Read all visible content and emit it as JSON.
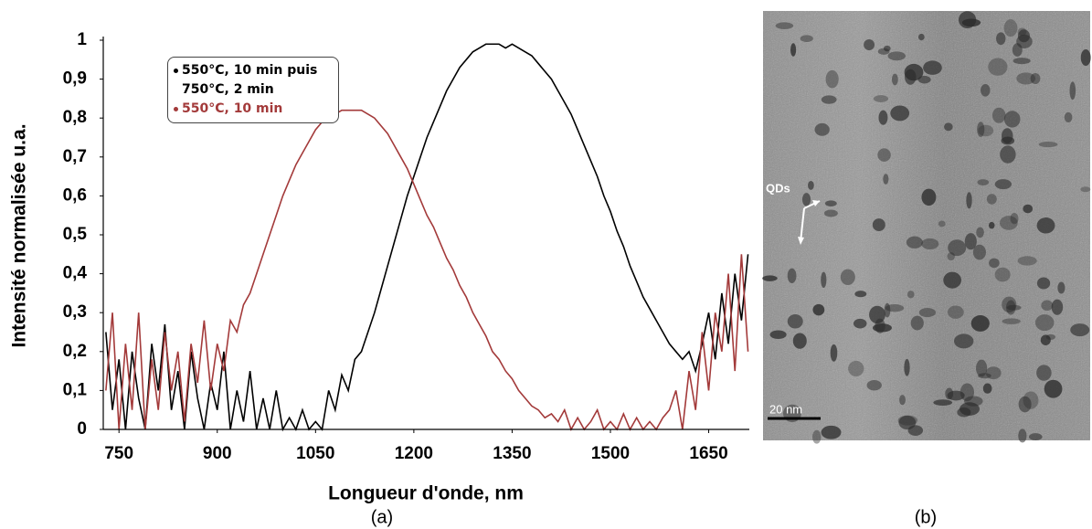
{
  "chart_data": {
    "type": "line",
    "panel_label": "(a)",
    "x_label": "Longueur d'onde, nm",
    "y_label": "Intensité normalisée u.a.",
    "xlim": [
      726,
      1712
    ],
    "ylim": [
      0,
      1
    ],
    "xticks": [
      750,
      900,
      1050,
      1200,
      1350,
      1500,
      1650
    ],
    "yticks": [
      0,
      {
        "value": 0.1,
        "label": "0,1"
      },
      {
        "value": 0.2,
        "label": "0,2"
      },
      {
        "value": 0.3,
        "label": "0,3"
      },
      {
        "value": 0.4,
        "label": "0,4"
      },
      {
        "value": 0.5,
        "label": "0,5"
      },
      {
        "value": 0.6,
        "label": "0,6"
      },
      {
        "value": 0.7,
        "label": "0,7"
      },
      {
        "value": 0.8,
        "label": "0,8"
      },
      {
        "value": 0.9,
        "label": "0,9"
      },
      1
    ],
    "x": [
      730,
      740,
      750,
      760,
      770,
      780,
      790,
      800,
      810,
      820,
      830,
      840,
      850,
      860,
      870,
      880,
      890,
      900,
      910,
      920,
      930,
      940,
      950,
      960,
      970,
      980,
      990,
      1000,
      1010,
      1020,
      1030,
      1040,
      1050,
      1060,
      1070,
      1080,
      1090,
      1100,
      1110,
      1120,
      1130,
      1140,
      1150,
      1160,
      1170,
      1180,
      1190,
      1200,
      1210,
      1220,
      1230,
      1240,
      1250,
      1260,
      1270,
      1280,
      1290,
      1300,
      1310,
      1320,
      1330,
      1340,
      1350,
      1360,
      1370,
      1380,
      1390,
      1400,
      1410,
      1420,
      1430,
      1440,
      1450,
      1460,
      1470,
      1480,
      1490,
      1500,
      1510,
      1520,
      1530,
      1540,
      1550,
      1560,
      1570,
      1580,
      1590,
      1600,
      1610,
      1620,
      1630,
      1640,
      1650,
      1660,
      1670,
      1680,
      1690,
      1700,
      1710
    ],
    "series": [
      {
        "name": "550°C, 10 min puis 750°C,  2 min",
        "color": "#000000",
        "values": [
          0.25,
          0.05,
          0.18,
          0,
          0.2,
          0.08,
          0,
          0.22,
          0.1,
          0.27,
          0.05,
          0.15,
          0,
          0.2,
          0.08,
          0,
          0.12,
          0.05,
          0.2,
          0,
          0.1,
          0.02,
          0.15,
          0,
          0.08,
          0,
          0.1,
          0,
          0.03,
          0,
          0.05,
          0,
          0.02,
          0,
          0.1,
          0.05,
          0.14,
          0.1,
          0.18,
          0.2,
          0.25,
          0.3,
          0.36,
          0.42,
          0.48,
          0.54,
          0.6,
          0.65,
          0.7,
          0.75,
          0.79,
          0.83,
          0.87,
          0.9,
          0.93,
          0.95,
          0.97,
          0.98,
          0.99,
          0.99,
          0.99,
          0.98,
          0.99,
          0.98,
          0.97,
          0.96,
          0.94,
          0.92,
          0.9,
          0.87,
          0.84,
          0.81,
          0.77,
          0.73,
          0.69,
          0.65,
          0.6,
          0.56,
          0.51,
          0.47,
          0.42,
          0.38,
          0.34,
          0.31,
          0.28,
          0.25,
          0.22,
          0.2,
          0.18,
          0.2,
          0.15,
          0.22,
          0.3,
          0.18,
          0.35,
          0.22,
          0.4,
          0.28,
          0.45
        ]
      },
      {
        "name": "550°C, 10 min",
        "color": "#a33a3a",
        "values": [
          0.1,
          0.3,
          0,
          0.22,
          0.05,
          0.3,
          0,
          0.18,
          0.05,
          0.25,
          0.1,
          0.2,
          0.02,
          0.22,
          0.12,
          0.28,
          0.1,
          0.22,
          0.15,
          0.28,
          0.25,
          0.32,
          0.35,
          0.4,
          0.45,
          0.5,
          0.55,
          0.6,
          0.64,
          0.68,
          0.71,
          0.74,
          0.77,
          0.79,
          0.8,
          0.81,
          0.82,
          0.82,
          0.82,
          0.82,
          0.81,
          0.8,
          0.78,
          0.76,
          0.73,
          0.7,
          0.67,
          0.63,
          0.59,
          0.55,
          0.52,
          0.48,
          0.44,
          0.41,
          0.37,
          0.34,
          0.3,
          0.27,
          0.24,
          0.2,
          0.18,
          0.15,
          0.13,
          0.1,
          0.08,
          0.06,
          0.05,
          0.03,
          0.04,
          0.02,
          0.05,
          0,
          0.03,
          0,
          0.02,
          0.05,
          0,
          0.02,
          0,
          0.04,
          0,
          0.03,
          0,
          0.02,
          0,
          0.03,
          0.05,
          0.1,
          0,
          0.15,
          0.05,
          0.25,
          0.1,
          0.3,
          0.2,
          0.4,
          0.15,
          0.45,
          0.2
        ]
      }
    ]
  },
  "panel_b": {
    "label": "(b)",
    "arrow_label": "QDs",
    "scale_bar": "20 nm"
  }
}
